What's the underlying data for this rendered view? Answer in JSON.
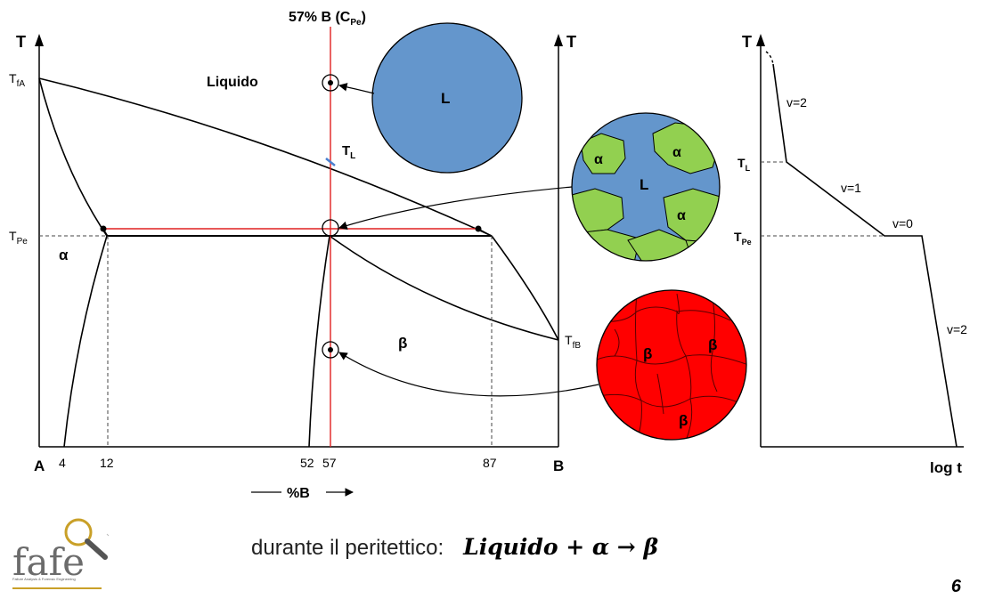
{
  "diagram": {
    "header": "57% B (C",
    "header_sub": "Pe",
    "header_close": ")",
    "axis_left_T": "T",
    "axis_right_T": "T",
    "T_fA": "T",
    "T_fA_sub": "fA",
    "T_Pe": "T",
    "T_Pe_sub": "Pe",
    "T_fB": "T",
    "T_fB_sub": "fB",
    "T_L": "T",
    "T_L_sub": "L",
    "region_liquid": "Liquido",
    "region_alpha": "α",
    "region_beta": "β",
    "corner_A": "A",
    "corner_B": "B",
    "x_ticks": [
      "4",
      "12",
      "52",
      "57",
      "87"
    ],
    "x_axis_label": "%B"
  },
  "micro": {
    "liquid_label": "L",
    "two_phase_L": "L",
    "two_phase_alpha": [
      "α",
      "α",
      "α"
    ],
    "beta_labels": [
      "β",
      "β",
      "β"
    ],
    "colors": {
      "liquid": "#6496cc",
      "alpha": "#92d050",
      "beta": "#ff0000"
    }
  },
  "cooling": {
    "axis_T": "T",
    "axis_logt": "log t",
    "T_L": "T",
    "T_L_sub": "L",
    "T_Pe": "T",
    "T_Pe_sub": "Pe",
    "segments": [
      "v=2",
      "v=1",
      "v=0",
      "v=2"
    ]
  },
  "caption": {
    "text": "durante il peritettico:",
    "equation": "Liquido + α → β"
  },
  "logo": {
    "text": "fafe",
    "tagline": "Failure Analysis & Forensic Engineering"
  },
  "page_number": "6"
}
